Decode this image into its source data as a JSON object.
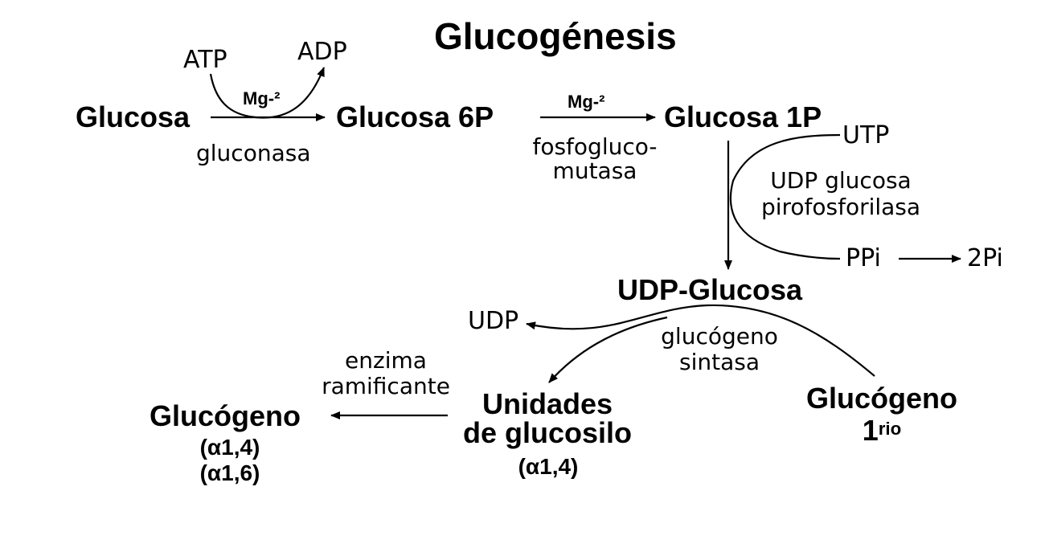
{
  "title": "Glucogénesis",
  "nodes": {
    "glucosa": "Glucosa",
    "glucosa_6p": "Glucosa 6P",
    "glucosa_1p": "Glucosa 1P",
    "udp_glucosa": "UDP-Glucosa",
    "unidades_line1": "Unidades",
    "unidades_line2": "de glucosilo",
    "unidades_bond": "(α1,4)",
    "glucogeno_final": "Glucógeno",
    "glucogeno_final_bond1": "(α1,4)",
    "glucogeno_final_bond2": "(α1,6)",
    "glucogeno_primer": "Glucógeno",
    "glucogeno_primer_num": "1",
    "glucogeno_primer_sup": "rio"
  },
  "cofactors": {
    "atp": "ATP",
    "adp": "ADP",
    "mg_1": "Mg-²",
    "mg_2": "Mg-²",
    "utp": "UTP",
    "ppi": "PPi",
    "two_pi": "2Pi",
    "udp": "UDP"
  },
  "enzymes": {
    "gluconasa": "gluconasa",
    "fosfoglucomutasa_line1": "fosfogluco-",
    "fosfoglucomutasa_line2": "mutasa",
    "udp_pirofosforilasa_line1": "UDP glucosa",
    "udp_pirofosforilasa_line2": "pirofosforilasa",
    "glucogeno_sintasa_line1": "glucógeno",
    "glucogeno_sintasa_line2": "sintasa",
    "ramificante_line1": "enzima",
    "ramificante_line2": "ramificante"
  }
}
